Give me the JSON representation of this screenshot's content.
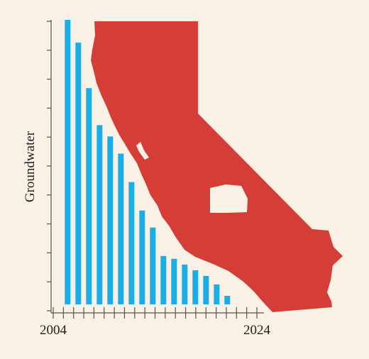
{
  "chart_data": {
    "type": "bar",
    "title": "",
    "ylabel": "Groundwater",
    "xlabel": "",
    "x_tick_labels": [
      "2004",
      "2024"
    ],
    "x_range": [
      2004,
      2024
    ],
    "categories": [
      "2004",
      "2005",
      "2006",
      "2007",
      "2008",
      "2009",
      "2010",
      "2011",
      "2012",
      "2013",
      "2014",
      "2015",
      "2016",
      "2017",
      "2018",
      "2019",
      "2020",
      "2021",
      "2022",
      "2023",
      "2024"
    ],
    "values": [
      null,
      100,
      92,
      76,
      63,
      59,
      53,
      43,
      33,
      27,
      17,
      16,
      14,
      12,
      10,
      7,
      3,
      null,
      null,
      null,
      null
    ],
    "ylim": [
      0,
      100
    ],
    "grid": false,
    "legend": "none",
    "bar_color": "#1aaee8",
    "background_color": "#f9f0e6",
    "illustration": {
      "shape": "California map",
      "color": "#d53e37"
    },
    "axis_color": "#555555"
  }
}
